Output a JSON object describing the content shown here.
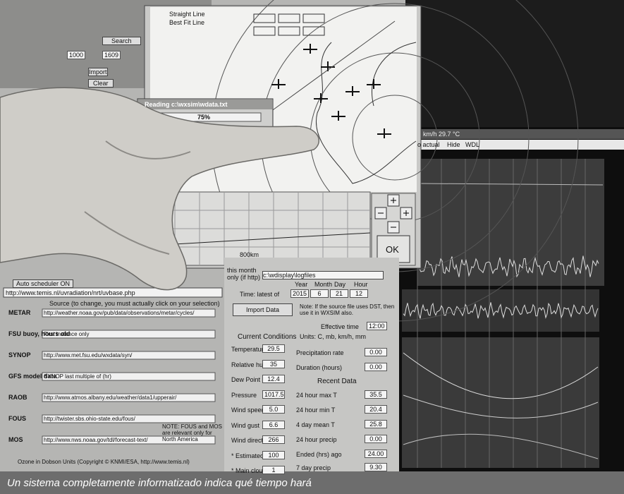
{
  "caption": "Un sistema completamente informatizado indica qué tiempo hará",
  "dialog": {
    "title": "Reading c:\\wxsim\\wdata.txt",
    "progress": "75%",
    "scale": "800km",
    "ok": "OK"
  },
  "top_controls": {
    "search": "Search",
    "import": "Import",
    "clear": "Clear",
    "range": "1000",
    "range2": "1609",
    "straight": "Straight Line",
    "best": "Best Fit Line"
  },
  "sources": {
    "heading": "Source (to change, you must actually click on your selection)",
    "url_bar": "http://www.temis.nl/uvradiation/nrt/uvbase.php",
    "auto": "Auto scheduler ON",
    "items": [
      {
        "name": "METAR",
        "url": "http://weather.noaa.gov/pub/data/observations/metar/cycles/"
      },
      {
        "name": "FSU buoy, hours old",
        "url": "First instance only"
      },
      {
        "name": "SYNOP",
        "url": "http://www.met.fsu.edu/wxdata/syn/"
      },
      {
        "name": "GFS model data",
        "url": "SYNOP last multiple of (hr)"
      },
      {
        "name": "RAOB",
        "url": "http://www.atmos.albany.edu/weather/data1/upperair/"
      },
      {
        "name": "FOUS",
        "url": "http://twister.sbs.ohio-state.edu/fous/"
      },
      {
        "name": "MOS",
        "url": "http://www.nws.noaa.gov/tdl/forecast-text/"
      }
    ],
    "note": "NOTE: FOUS and MOS are relevant only for North America",
    "bottom": "Ozone in Dobson Units (Copyright © KNMI/ESA, http://www.temis.nl)"
  },
  "form": {
    "month_label": "this month only (if http)",
    "path": "c:\\wdisplay\\logfiles",
    "date_labels": [
      "Year",
      "Month",
      "Day",
      "Hour"
    ],
    "time_label": "Time: latest of",
    "date_values": [
      "2015",
      "6",
      "21",
      "12"
    ],
    "import": "Import Data",
    "note": "Note: If the source file uses DST, then use it in WXSIM also.",
    "effective_label": "Effective time",
    "effective": "12:00",
    "current": "Current Conditions",
    "units": "Units: C, mb, km/h, mm",
    "recent": "Recent Data",
    "left_fields": [
      {
        "label": "Temperature",
        "value": "29.5"
      },
      {
        "label": "Relative humidity",
        "value": "35"
      },
      {
        "label": "Dew Point",
        "value": "12.4"
      },
      {
        "label": "Pressure",
        "value": "1017.5"
      },
      {
        "label": "Wind speed",
        "value": "5.0"
      },
      {
        "label": "Wind gust",
        "value": "6.6"
      },
      {
        "label": "Wind direction",
        "value": "266"
      },
      {
        "label": "* Estimated clouds",
        "value": "100"
      },
      {
        "label": "* Main cloud level",
        "value": "1"
      }
    ],
    "right_fields": [
      {
        "label": "Precipitation rate",
        "value": "0.00"
      },
      {
        "label": "Duration (hours)",
        "value": "0.00"
      },
      {
        "label": "24 hour max T",
        "value": "35.5"
      },
      {
        "label": "24 hour min T",
        "value": "20.4"
      },
      {
        "label": "4 day mean T",
        "value": "25.8"
      },
      {
        "label": "24 hour precip",
        "value": "0.00"
      },
      {
        "label": "Ended (hrs) ago",
        "value": "24.00"
      },
      {
        "label": "7 day precip",
        "value": "9.30"
      }
    ]
  },
  "right_window": {
    "title": "km/h 29.7 °C",
    "menu": [
      "o actual",
      "Hide",
      "WDL"
    ]
  }
}
